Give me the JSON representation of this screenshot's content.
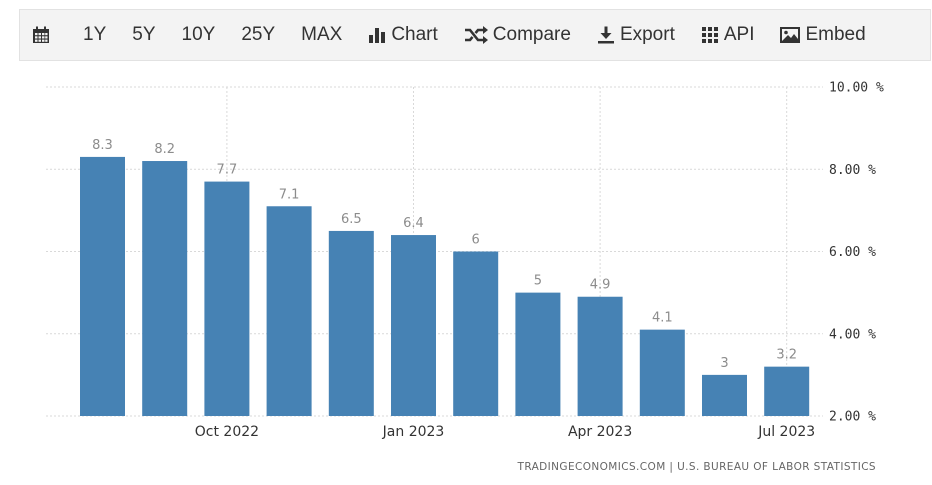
{
  "toolbar": {
    "range_buttons": [
      "1Y",
      "5Y",
      "10Y",
      "25Y",
      "MAX"
    ],
    "chart_label": "Chart",
    "compare_label": "Compare",
    "export_label": "Export",
    "api_label": "API",
    "embed_label": "Embed",
    "icons": {
      "calendar": "calendar-icon",
      "chart": "bar-chart-icon",
      "compare": "shuffle-icon",
      "export": "download-icon",
      "api": "grid-icon",
      "embed": "image-icon"
    }
  },
  "chart_data": {
    "type": "bar",
    "categories": [
      "Aug 2022",
      "Sep 2022",
      "Oct 2022",
      "Nov 2022",
      "Dec 2022",
      "Jan 2023",
      "Feb 2023",
      "Mar 2023",
      "Apr 2023",
      "May 2023",
      "Jun 2023",
      "Jul 2023"
    ],
    "values": [
      8.3,
      8.2,
      7.7,
      7.1,
      6.5,
      6.4,
      6,
      5,
      4.9,
      4.1,
      3,
      3.2
    ],
    "value_labels": [
      "8.3",
      "8.2",
      "7.7",
      "7.1",
      "6.5",
      "6.4",
      "6",
      "5",
      "4.9",
      "4.1",
      "3",
      "3.2"
    ],
    "x_tick_labels": [
      "Oct 2022",
      "Jan 2023",
      "Apr 2023",
      "Jul 2023"
    ],
    "x_tick_categories": [
      "Oct 2022",
      "Jan 2023",
      "Apr 2023",
      "Jul 2023"
    ],
    "y_ticks": [
      2,
      4,
      6,
      8,
      10
    ],
    "y_tick_labels": [
      "2.00 %",
      "4.00 %",
      "6.00 %",
      "8.00 %",
      "10.00 %"
    ],
    "ylim": [
      2,
      10
    ],
    "y_axis_side": "right",
    "grid": true,
    "bar_color": "#4682b4",
    "title": "",
    "xlabel": "",
    "ylabel": ""
  },
  "source": "TRADINGECONOMICS.COM | U.S. BUREAU OF LABOR STATISTICS"
}
